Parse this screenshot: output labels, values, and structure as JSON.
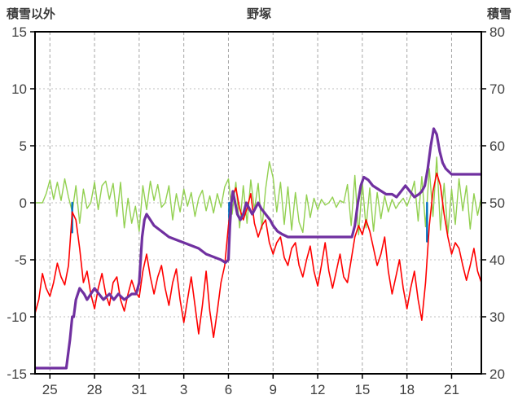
{
  "chart_data": {
    "type": "line",
    "title": "野塚",
    "left_axis": {
      "label": "積雪以外",
      "min": -15,
      "max": 15,
      "ticks": [
        15,
        10,
        5,
        0,
        -5,
        -10,
        -15
      ]
    },
    "right_axis": {
      "label": "積雪",
      "min": 20,
      "max": 80,
      "ticks": [
        80,
        70,
        60,
        50,
        40,
        30,
        20
      ]
    },
    "x_axis": {
      "min": 0,
      "max": 30,
      "tick_positions": [
        1,
        4,
        7,
        10,
        13,
        16,
        19,
        22,
        25,
        28
      ],
      "tick_labels": [
        "25",
        "28",
        "31",
        "3",
        "6",
        "9",
        "12",
        "15",
        "18",
        "21"
      ]
    },
    "grid": {
      "vertical": true,
      "horizontal": true
    },
    "legend": "none",
    "series": [
      {
        "id": "green",
        "color": "#92d050",
        "axis": "left",
        "width": 1.4,
        "x_start": 0,
        "x_step": 0.25,
        "values": [
          0,
          0,
          0,
          0.8,
          2.0,
          0.3,
          1.8,
          0.2,
          2.1,
          0.5,
          -0.8,
          1.5,
          -1.8,
          1.2,
          -0.5,
          0,
          1.8,
          -0.6,
          1.5,
          1.9,
          0.3,
          1.7,
          -1.2,
          1.8,
          -2.2,
          0.4,
          -1.8,
          -0.3,
          -2.5,
          1.5,
          -0.6,
          1.9,
          0.2,
          1.6,
          -0.4,
          0,
          1.5,
          -1.5,
          0.8,
          -0.8,
          1.2,
          -0.3,
          0.9,
          -1.2,
          0.4,
          1.1,
          -0.7,
          0.6,
          -0.9,
          0.8,
          -0.4,
          1.4,
          2.1,
          -1.0,
          1.8,
          -2.2,
          1.5,
          -1.8,
          2.0,
          -0.6,
          1.7,
          -2.3,
          1.2,
          3.6,
          2.2,
          -0.8,
          1.8,
          -1.9,
          1.4,
          -2.4,
          0.9,
          -1.7,
          -2.6,
          0.7,
          -1.3,
          0.4,
          -0.6,
          0.3,
          -0.2,
          0,
          0.5,
          -0.4,
          0.2,
          0,
          1.6,
          -2.0,
          2.4,
          -2.8,
          1.8,
          -2.2,
          1.3,
          -2.5,
          0.9,
          -1.4,
          0.6,
          -0.8,
          0.3,
          -0.5,
          0,
          0.4,
          -0.3,
          0.6,
          1.9,
          -1.6,
          2.3,
          -2.1,
          3.0,
          -1.2,
          4.0,
          -2.4,
          1.7,
          -2.7,
          1.2,
          -1.9,
          2.1,
          -0.7,
          1.5,
          -2.3,
          0.8,
          -1.1,
          0.5
        ]
      },
      {
        "id": "blue",
        "color": "#0070c0",
        "axis": "left",
        "width": 2.4,
        "type": "spikes",
        "spikes": [
          {
            "x": 2.5,
            "v": -2.6
          },
          {
            "x": 13.05,
            "v": -2.0
          },
          {
            "x": 26.35,
            "v": -3.4
          }
        ]
      },
      {
        "id": "red",
        "color": "#ff0000",
        "axis": "left",
        "width": 1.6,
        "x_start": 0,
        "x_step": 0.25,
        "values": [
          -9.7,
          -8.5,
          -6.2,
          -7.5,
          -8.2,
          -7.0,
          -5.3,
          -6.5,
          -7.2,
          -5.5,
          -0.8,
          -1.5,
          -4.0,
          -7.0,
          -6.0,
          -8.0,
          -9.3,
          -7.5,
          -6.2,
          -8.0,
          -9.0,
          -7.0,
          -6.5,
          -8.5,
          -9.5,
          -8.0,
          -6.8,
          -7.8,
          -8.3,
          -6.0,
          -4.5,
          -6.5,
          -8.0,
          -6.5,
          -5.5,
          -7.5,
          -9.0,
          -7.0,
          -5.8,
          -8.5,
          -10.5,
          -8.5,
          -6.5,
          -9.0,
          -11.5,
          -9.0,
          -6.0,
          -9.5,
          -11.8,
          -9.5,
          -7.0,
          -5.5,
          -2.0,
          0.5,
          1.3,
          -0.5,
          -1.5,
          -0.5,
          0.8,
          -1.8,
          -3.0,
          -2.0,
          -1.5,
          -3.5,
          -4.5,
          -3.5,
          -3.0,
          -4.8,
          -5.5,
          -4.0,
          -3.5,
          -5.5,
          -6.5,
          -5.0,
          -3.8,
          -6.0,
          -7.3,
          -5.5,
          -3.5,
          -6.0,
          -7.5,
          -6.0,
          -4.5,
          -6.5,
          -7.0,
          -5.0,
          -3.0,
          -2.0,
          -2.8,
          -1.5,
          -2.5,
          -4.0,
          -5.5,
          -4.5,
          -3.0,
          -6.0,
          -8.0,
          -6.5,
          -5.0,
          -7.5,
          -9.3,
          -7.5,
          -6.0,
          -8.5,
          -10.3,
          -7.0,
          -2.0,
          1.0,
          2.6,
          1.5,
          -1.0,
          -3.0,
          -4.5,
          -3.5,
          -4.0,
          -5.5,
          -6.8,
          -5.5,
          -4.0,
          -6.0,
          -7.0
        ]
      },
      {
        "id": "purple",
        "color": "#7030a0",
        "axis": "right",
        "width": 3.2,
        "points": [
          [
            0,
            21
          ],
          [
            2.1,
            21
          ],
          [
            2.2,
            23
          ],
          [
            2.35,
            26
          ],
          [
            2.5,
            30
          ],
          [
            2.6,
            30
          ],
          [
            2.75,
            33
          ],
          [
            3,
            35
          ],
          [
            3.3,
            34
          ],
          [
            3.5,
            33
          ],
          [
            3.75,
            34
          ],
          [
            4,
            35
          ],
          [
            4.3,
            34
          ],
          [
            4.6,
            33
          ],
          [
            5,
            34
          ],
          [
            5.3,
            33
          ],
          [
            5.6,
            34
          ],
          [
            6,
            33
          ],
          [
            6.5,
            34
          ],
          [
            6.8,
            34
          ],
          [
            7,
            36
          ],
          [
            7.1,
            40
          ],
          [
            7.2,
            44
          ],
          [
            7.35,
            47
          ],
          [
            7.5,
            48
          ],
          [
            7.75,
            47
          ],
          [
            8,
            46
          ],
          [
            8.5,
            45
          ],
          [
            9,
            44
          ],
          [
            9.5,
            43.5
          ],
          [
            10,
            43
          ],
          [
            10.5,
            42.5
          ],
          [
            11,
            42
          ],
          [
            11.5,
            41
          ],
          [
            12,
            40.5
          ],
          [
            12.5,
            40
          ],
          [
            12.8,
            39.5
          ],
          [
            13,
            40
          ],
          [
            13.1,
            46
          ],
          [
            13.2,
            50
          ],
          [
            13.3,
            52
          ],
          [
            13.45,
            50
          ],
          [
            13.6,
            48
          ],
          [
            13.8,
            47
          ],
          [
            14,
            48
          ],
          [
            14.2,
            50
          ],
          [
            14.4,
            49
          ],
          [
            14.6,
            48
          ],
          [
            14.8,
            49
          ],
          [
            15,
            50
          ],
          [
            15.2,
            49
          ],
          [
            15.5,
            48
          ],
          [
            15.8,
            47
          ],
          [
            16,
            46
          ],
          [
            16.3,
            45
          ],
          [
            16.6,
            44.5
          ],
          [
            17,
            44
          ],
          [
            21.3,
            44
          ],
          [
            21.5,
            46
          ],
          [
            21.7,
            50
          ],
          [
            21.9,
            53
          ],
          [
            22.1,
            54.5
          ],
          [
            22.4,
            54
          ],
          [
            22.7,
            53
          ],
          [
            23,
            52.5
          ],
          [
            23.3,
            52
          ],
          [
            23.6,
            51.5
          ],
          [
            24,
            51.5
          ],
          [
            24.3,
            51
          ],
          [
            24.6,
            52
          ],
          [
            24.9,
            53
          ],
          [
            25.2,
            52
          ],
          [
            25.5,
            51
          ],
          [
            25.8,
            51.5
          ],
          [
            26,
            52
          ],
          [
            26.2,
            53
          ],
          [
            26.4,
            56
          ],
          [
            26.6,
            60
          ],
          [
            26.8,
            63
          ],
          [
            27,
            62
          ],
          [
            27.2,
            59
          ],
          [
            27.4,
            57
          ],
          [
            27.6,
            56
          ],
          [
            27.8,
            55.5
          ],
          [
            28,
            55
          ],
          [
            30,
            55
          ]
        ]
      }
    ],
    "colors": {
      "border": "#000000",
      "grid_vertical": "#a6a6a6",
      "grid_horizontal": "#bfbfbf",
      "tick_text": "#404040"
    }
  }
}
